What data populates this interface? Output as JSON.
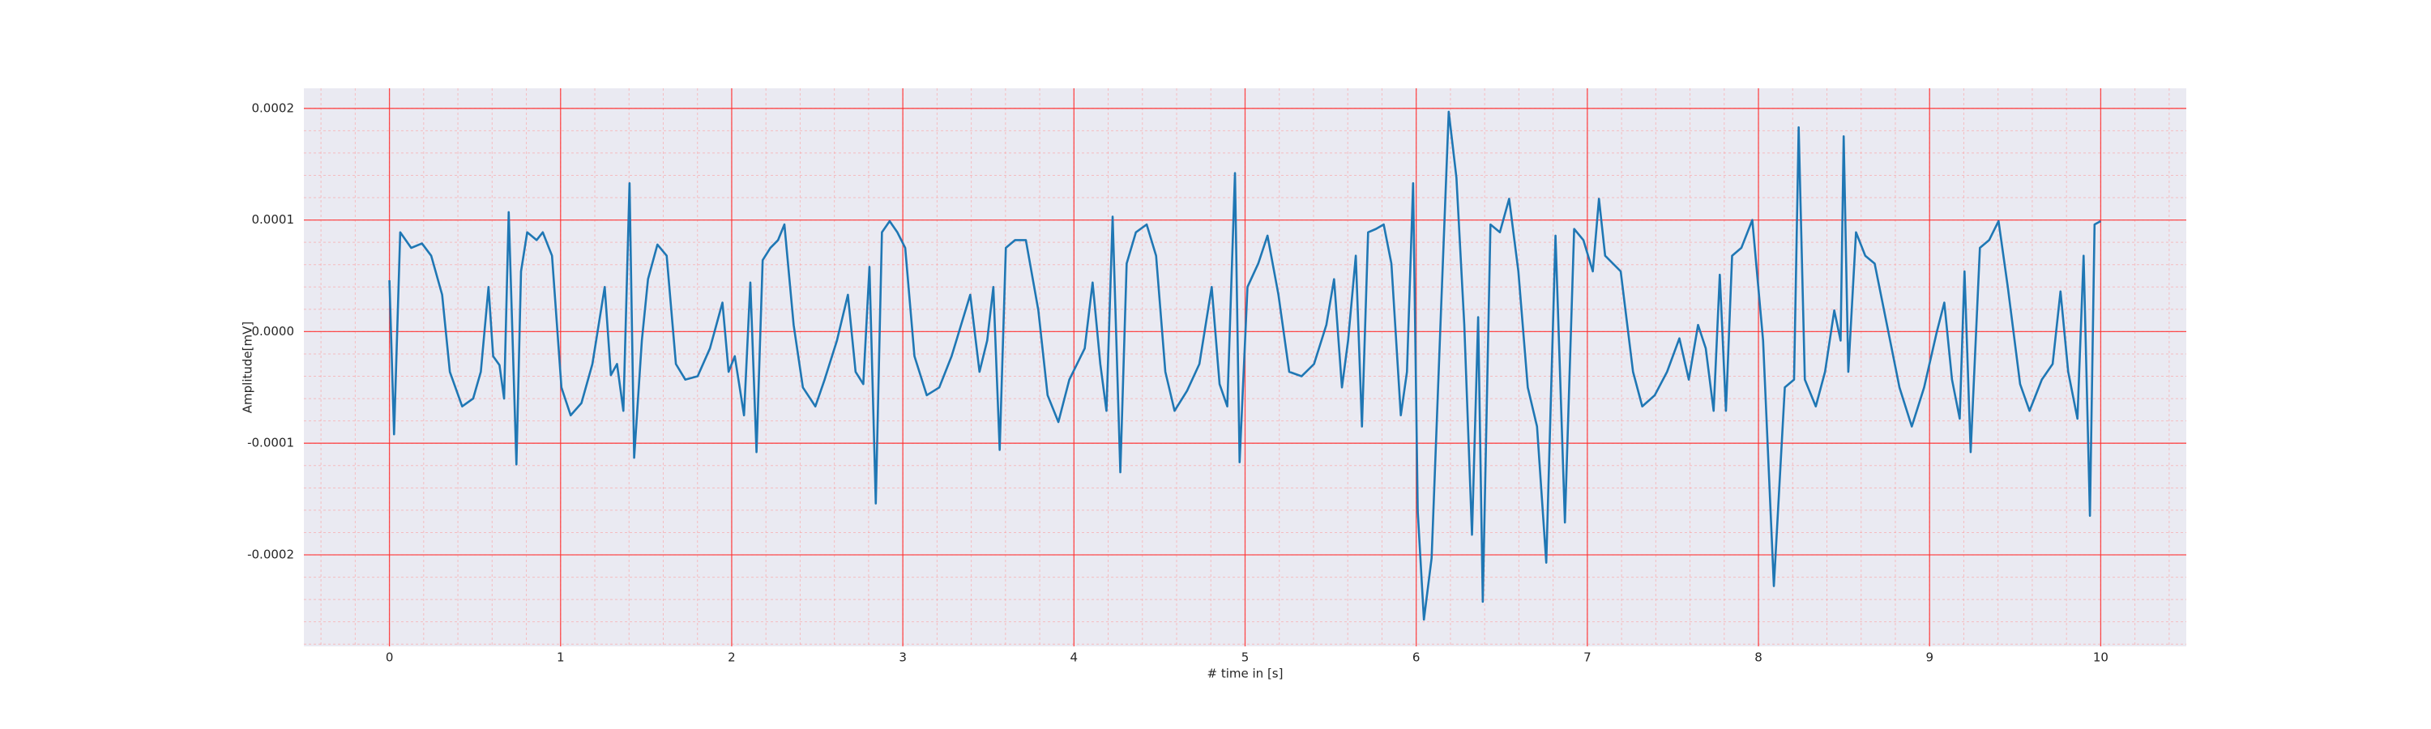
{
  "chart_data": {
    "type": "line",
    "xlabel": "# time in [s]",
    "ylabel": "Amplitude[mV]",
    "xlim": [
      -0.5,
      10.5
    ],
    "ylim": [
      -0.000282,
      0.000218
    ],
    "xticks": [
      0,
      1,
      2,
      3,
      4,
      5,
      6,
      7,
      8,
      9,
      10
    ],
    "yticks": [
      -0.0002,
      -0.0001,
      {
        "value": 0,
        "label": "0.0000"
      },
      0.0001,
      0.0002
    ],
    "grid": true,
    "minor_grid": true,
    "series": [
      {
        "color": "#1f77b4",
        "x": [
          0,
          0.027,
          0.063,
          0.127,
          0.19,
          0.244,
          0.308,
          0.353,
          0.425,
          0.489,
          0.534,
          0.579,
          0.606,
          0.643,
          0.67,
          0.697,
          0.742,
          0.769,
          0.805,
          0.86,
          0.896,
          0.95,
          1.005,
          1.059,
          1.122,
          1.186,
          1.258,
          1.294,
          1.33,
          1.367,
          1.403,
          1.43,
          1.475,
          1.511,
          1.566,
          1.62,
          1.674,
          1.729,
          1.801,
          1.873,
          1.946,
          1.982,
          2.018,
          2.072,
          2.109,
          2.145,
          2.181,
          2.226,
          2.271,
          2.308,
          2.362,
          2.416,
          2.489,
          2.543,
          2.615,
          2.679,
          2.724,
          2.769,
          2.805,
          2.842,
          2.878,
          2.923,
          2.968,
          3.014,
          3.068,
          3.14,
          3.213,
          3.285,
          3.394,
          3.448,
          3.493,
          3.529,
          3.566,
          3.602,
          3.656,
          3.719,
          3.792,
          3.846,
          3.909,
          3.973,
          4.063,
          4.109,
          4.154,
          4.19,
          4.226,
          4.271,
          4.308,
          4.362,
          4.425,
          4.48,
          4.534,
          4.588,
          4.661,
          4.733,
          4.805,
          4.851,
          4.896,
          4.941,
          4.968,
          5.014,
          5.077,
          5.131,
          5.195,
          5.258,
          5.33,
          5.403,
          5.475,
          5.52,
          5.566,
          5.602,
          5.647,
          5.683,
          5.719,
          5.765,
          5.81,
          5.855,
          5.91,
          5.946,
          5.982,
          6.009,
          6.045,
          6.09,
          6.145,
          6.19,
          6.235,
          6.281,
          6.326,
          6.362,
          6.389,
          6.434,
          6.489,
          6.543,
          6.597,
          6.652,
          6.706,
          6.76,
          6.814,
          6.869,
          6.923,
          6.977,
          7.032,
          7.068,
          7.104,
          7.195,
          7.267,
          7.321,
          7.394,
          7.466,
          7.538,
          7.593,
          7.647,
          7.692,
          7.738,
          7.774,
          7.81,
          7.846,
          7.9,
          7.964,
          8.027,
          8.09,
          8.154,
          8.208,
          8.235,
          8.271,
          8.335,
          8.389,
          8.443,
          8.48,
          8.498,
          8.525,
          8.57,
          8.624,
          8.679,
          8.751,
          8.824,
          8.896,
          8.968,
          9.041,
          9.086,
          9.131,
          9.176,
          9.204,
          9.24,
          9.294,
          9.348,
          9.403,
          9.457,
          9.529,
          9.584,
          9.656,
          9.719,
          9.765,
          9.81,
          9.864,
          9.9,
          9.937,
          9.964,
          10.0
        ],
        "values": [
          4.6e-05,
          -9.2e-05,
          8.9e-05,
          7.5e-05,
          7.9e-05,
          6.8e-05,
          3.3e-05,
          -3.6e-05,
          -6.7e-05,
          -6e-05,
          -3.6e-05,
          4e-05,
          -2.2e-05,
          -3e-05,
          -6e-05,
          0.000107,
          -0.000119,
          5.4e-05,
          8.9e-05,
          8.2e-05,
          8.9e-05,
          6.8e-05,
          -5e-05,
          -7.5e-05,
          -6.4e-05,
          -2.9e-05,
          4e-05,
          -3.9e-05,
          -2.9e-05,
          -7.1e-05,
          0.000133,
          -0.000113,
          -8e-06,
          4.7e-05,
          7.8e-05,
          6.8e-05,
          -2.9e-05,
          -4.3e-05,
          -4e-05,
          -1.5e-05,
          2.6e-05,
          -3.6e-05,
          -2.2e-05,
          -7.5e-05,
          4.4e-05,
          -0.000108,
          6.4e-05,
          7.5e-05,
          8.2e-05,
          9.6e-05,
          6e-06,
          -5e-05,
          -6.7e-05,
          -4.3e-05,
          -8e-06,
          3.3e-05,
          -3.6e-05,
          -4.7e-05,
          5.8e-05,
          -0.000154,
          8.9e-05,
          9.9e-05,
          8.9e-05,
          7.5e-05,
          -2.2e-05,
          -5.7e-05,
          -5e-05,
          -2.2e-05,
          3.3e-05,
          -3.6e-05,
          -8e-06,
          4e-05,
          -0.000106,
          7.5e-05,
          8.2e-05,
          8.2e-05,
          1.9e-05,
          -5.7e-05,
          -8.1e-05,
          -4.3e-05,
          -1.5e-05,
          4.4e-05,
          -2.9e-05,
          -7.1e-05,
          0.000103,
          -0.000126,
          6.1e-05,
          8.9e-05,
          9.6e-05,
          6.8e-05,
          -3.6e-05,
          -7.1e-05,
          -5.3e-05,
          -2.9e-05,
          4e-05,
          -4.7e-05,
          -6.7e-05,
          0.000142,
          -0.000117,
          4e-05,
          6.1e-05,
          8.6e-05,
          3.3e-05,
          -3.6e-05,
          -4e-05,
          -2.9e-05,
          6e-06,
          4.7e-05,
          -5e-05,
          -8e-06,
          6.8e-05,
          -8.5e-05,
          8.9e-05,
          9.2e-05,
          9.6e-05,
          6.1e-05,
          -7.5e-05,
          -3.6e-05,
          0.000133,
          -0.000161,
          -0.000258,
          -0.000203,
          1.9e-05,
          0.000197,
          0.000138,
          6e-06,
          -0.000182,
          1.3e-05,
          -0.000242,
          9.6e-05,
          8.9e-05,
          0.000119,
          5.4e-05,
          -5e-05,
          -8.5e-05,
          -0.000207,
          8.6e-05,
          -0.000171,
          9.2e-05,
          8.2e-05,
          5.4e-05,
          0.000119,
          6.8e-05,
          5.4e-05,
          -3.6e-05,
          -6.7e-05,
          -5.7e-05,
          -3.6e-05,
          -6e-06,
          -4.3e-05,
          6e-06,
          -1.5e-05,
          -7.1e-05,
          5.1e-05,
          -7.1e-05,
          6.8e-05,
          7.5e-05,
          0.0001,
          -8e-06,
          -0.000228,
          -5e-05,
          -4.3e-05,
          0.000183,
          -4.3e-05,
          -6.7e-05,
          -3.6e-05,
          1.9e-05,
          -8e-06,
          0.000175,
          -3.6e-05,
          8.9e-05,
          6.8e-05,
          6.1e-05,
          6e-06,
          -5e-05,
          -8.5e-05,
          -5e-05,
          -1e-06,
          2.6e-05,
          -4.3e-05,
          -7.8e-05,
          5.4e-05,
          -0.000108,
          7.5e-05,
          8.2e-05,
          9.9e-05,
          4e-05,
          -4.7e-05,
          -7.1e-05,
          -4.3e-05,
          -2.9e-05,
          3.6e-05,
          -3.6e-05,
          -7.8e-05,
          6.8e-05,
          -0.000165,
          9.6e-05,
          9.9e-05
        ]
      }
    ]
  }
}
